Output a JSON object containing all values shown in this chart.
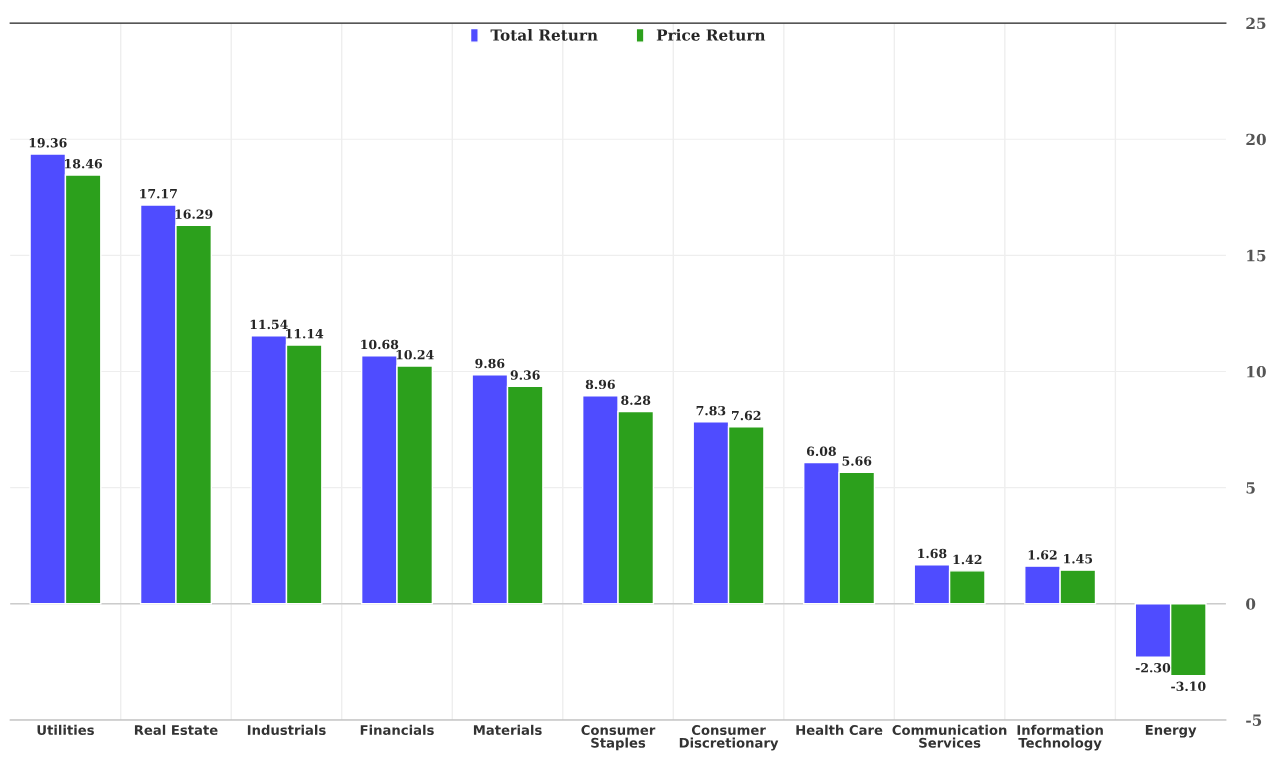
{
  "chart_data": {
    "type": "bar",
    "categories": [
      "Utilities",
      "Real Estate",
      "Industrials",
      "Financials",
      "Materials",
      "Consumer\nStaples",
      "Consumer\nDiscretionary",
      "Health Care",
      "Communication\nServices",
      "Information\nTechnology",
      "Energy"
    ],
    "series": [
      {
        "name": "Total Return",
        "color": "#4f4cff",
        "values": [
          19.36,
          17.17,
          11.54,
          10.68,
          9.86,
          8.96,
          7.83,
          6.08,
          1.68,
          1.62,
          -2.3
        ],
        "value_labels": [
          "19.36",
          "17.17",
          "11.54",
          "10.68",
          "9.86",
          "8.96",
          "7.83",
          "6.08",
          "1.68",
          "1.62",
          "-2.30"
        ]
      },
      {
        "name": "Price Return",
        "color": "#2ca01c",
        "values": [
          18.46,
          16.29,
          11.14,
          10.24,
          9.36,
          8.28,
          7.62,
          5.66,
          1.42,
          1.45,
          -3.1
        ],
        "value_labels": [
          "18.46",
          "16.29",
          "11.14",
          "10.24",
          "9.36",
          "8.28",
          "7.62",
          "5.66",
          "1.42",
          "1.45",
          "-3.10"
        ]
      }
    ],
    "ylim": [
      -5,
      25
    ],
    "yticks": [
      -5,
      0,
      5,
      10,
      15,
      20,
      25
    ],
    "grid": true,
    "legend": "top"
  }
}
